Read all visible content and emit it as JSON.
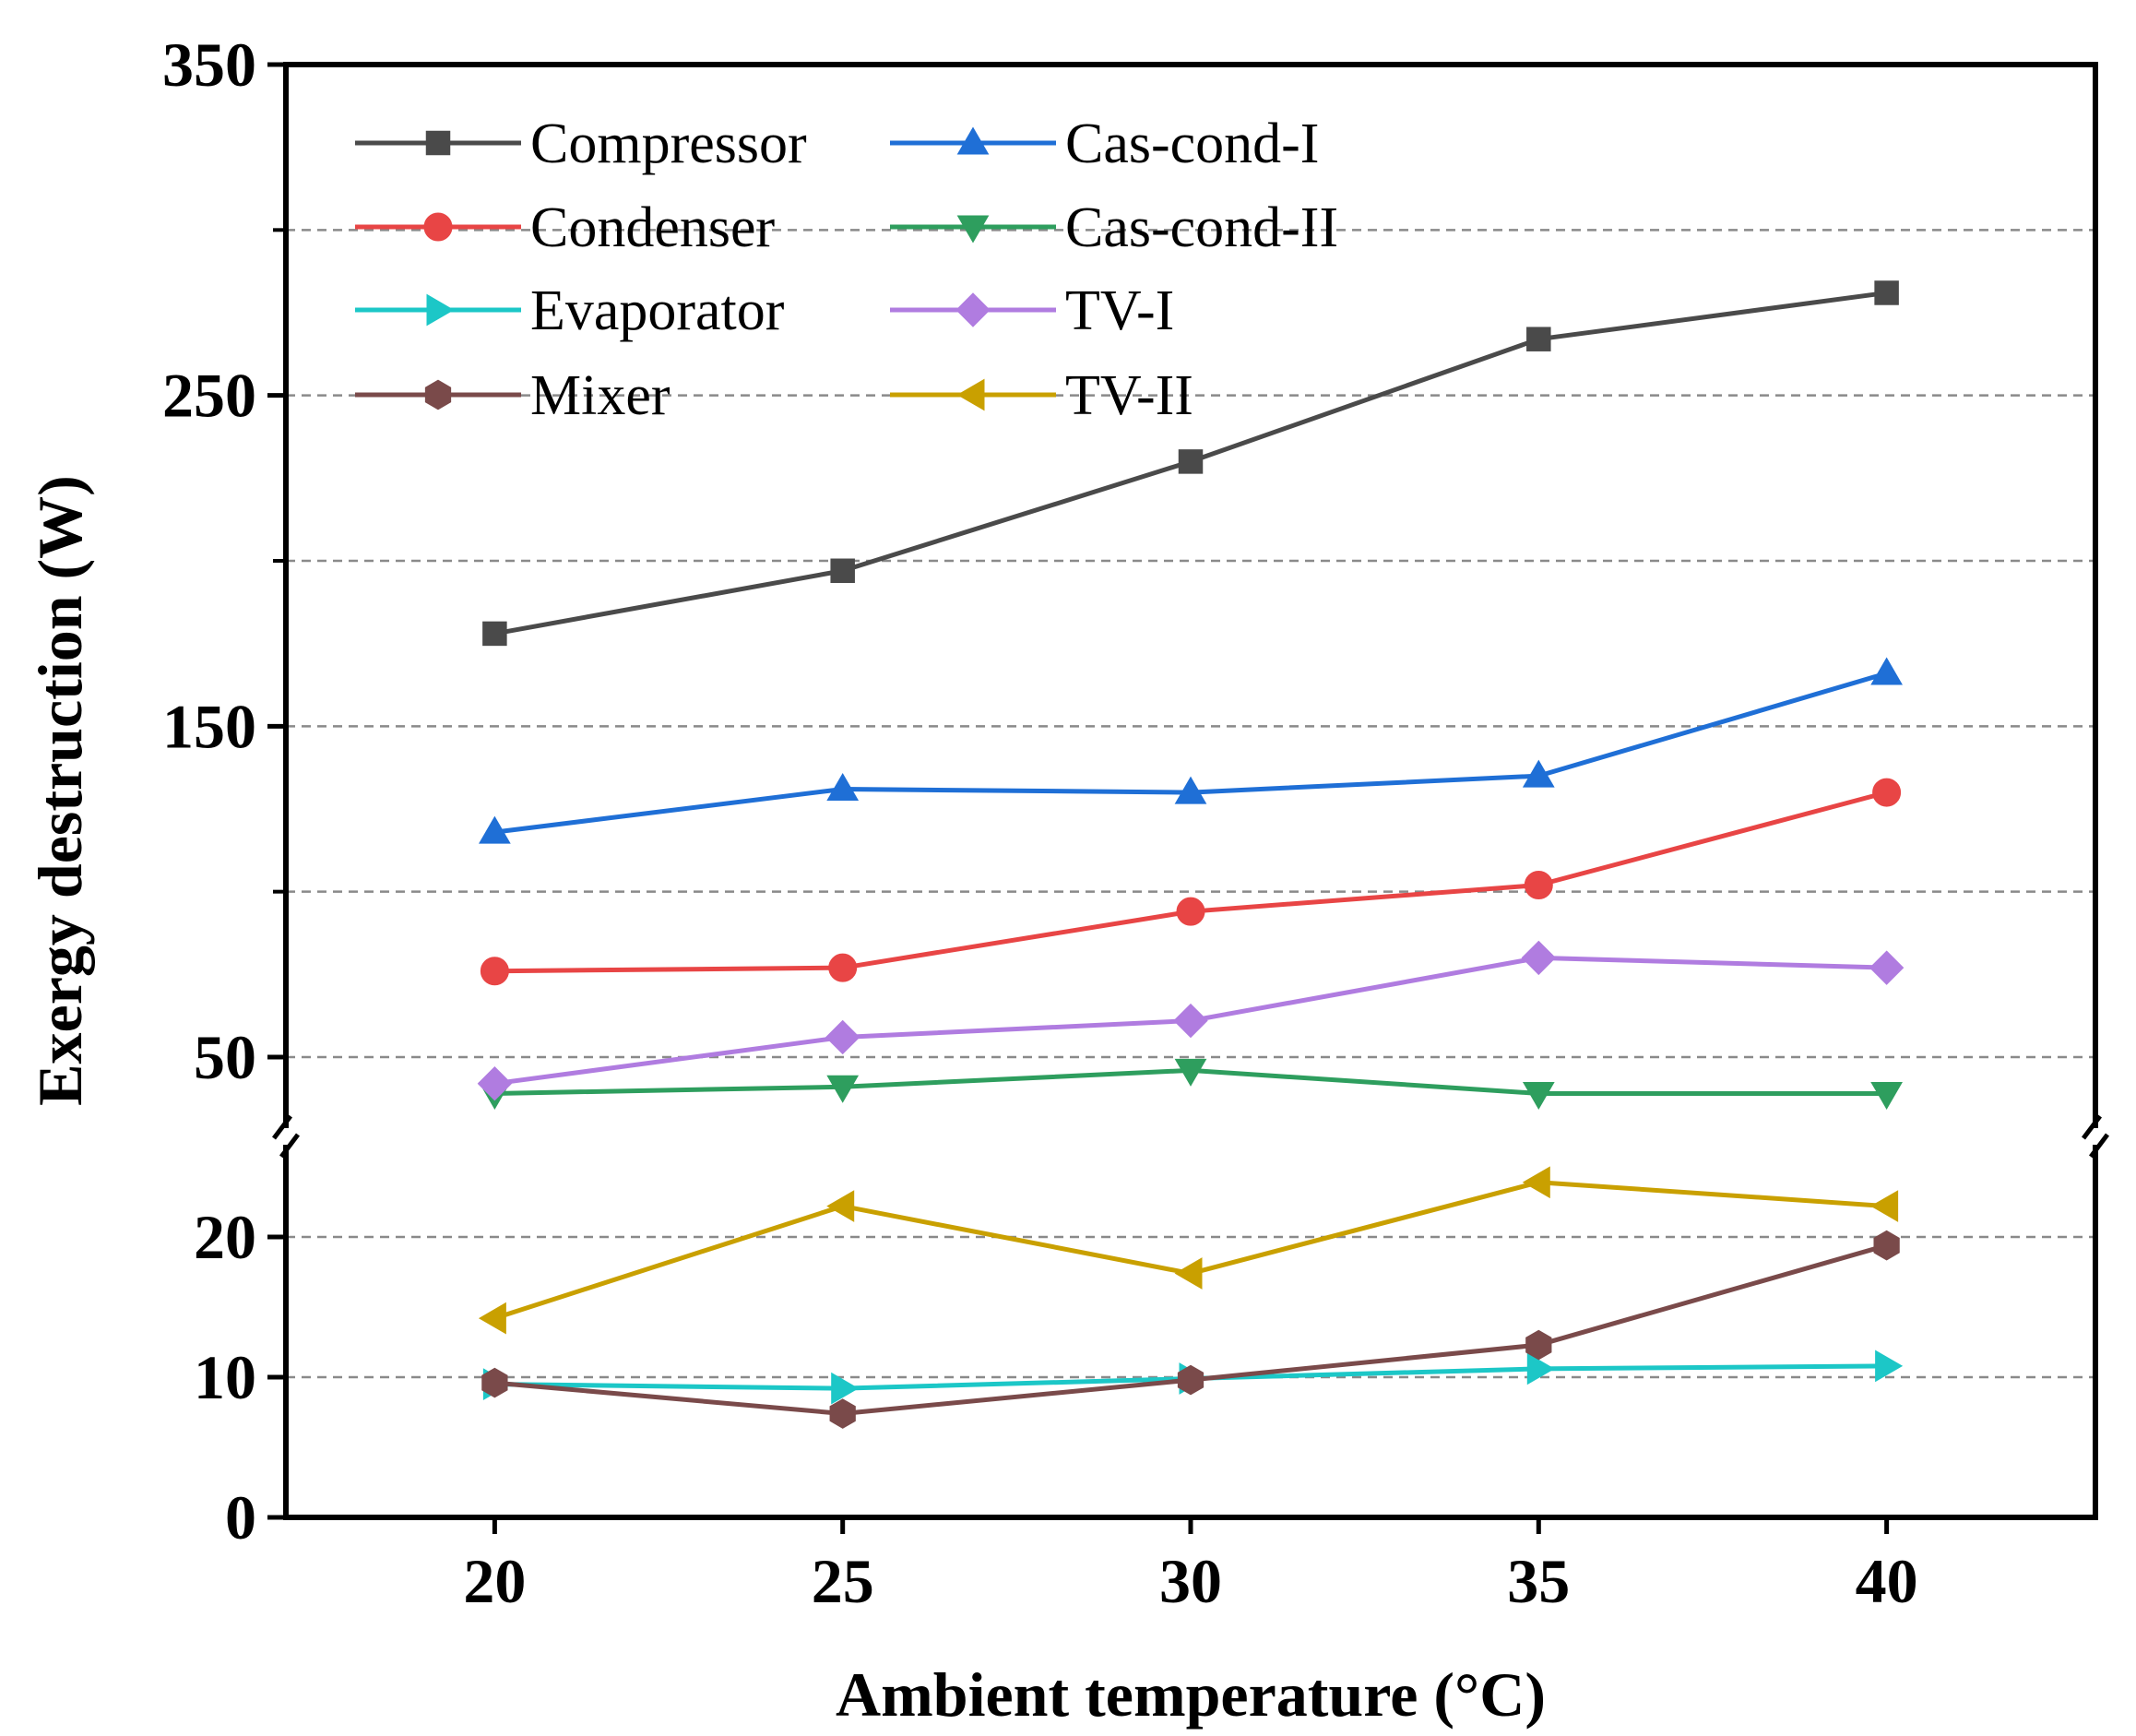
{
  "chart_data": {
    "type": "line",
    "title": "",
    "xlabel": "Ambient temperature (°C)",
    "ylabel": "Exergy destruction (W)",
    "x": [
      20,
      25,
      30,
      35,
      40
    ],
    "xlim": [
      17,
      43
    ],
    "x_ticks": [
      "20",
      "25",
      "30",
      "35",
      "40"
    ],
    "y_axis_break": true,
    "y_lower_range": [
      0,
      25
    ],
    "y_upper_range": [
      35,
      350
    ],
    "y_ticks": [
      "0",
      "10",
      "20",
      "50",
      "150",
      "250",
      "350"
    ],
    "y_tick_values": [
      0,
      10,
      20,
      50,
      150,
      250,
      350
    ],
    "y_minor_ticks": [
      100,
      200,
      300
    ],
    "grid": "horizontal dashed",
    "legend_position": "top-left",
    "series": [
      {
        "name": "Compressor",
        "marker": "square",
        "color": "#4a4a4a",
        "values": [
          178,
          197,
          230,
          267,
          281
        ]
      },
      {
        "name": "Condenser",
        "marker": "circle",
        "color": "#e84545",
        "values": [
          76,
          77,
          94,
          102,
          130
        ]
      },
      {
        "name": "Evaporator",
        "marker": "triangle-right",
        "color": "#1cc7c7",
        "values": [
          9.5,
          9.2,
          9.9,
          10.6,
          10.8
        ]
      },
      {
        "name": "Mixer",
        "marker": "hexagon",
        "color": "#7a4a4a",
        "values": [
          9.6,
          7.4,
          9.8,
          12.3,
          19.4
        ]
      },
      {
        "name": "Cas-cond-I",
        "marker": "triangle-up",
        "color": "#1f6fd6",
        "values": [
          118,
          131,
          130,
          135,
          166
        ]
      },
      {
        "name": "Cas-cond-II",
        "marker": "triangle-down",
        "color": "#2e9e5e",
        "values": [
          39,
          41,
          46,
          39,
          39
        ]
      },
      {
        "name": "TV-I",
        "marker": "diamond",
        "color": "#b07ce0",
        "values": [
          42,
          56,
          61,
          80,
          77
        ]
      },
      {
        "name": "TV-II",
        "marker": "triangle-left",
        "color": "#c9a000",
        "values": [
          14.2,
          22.2,
          17.4,
          23.9,
          22.2
        ]
      }
    ]
  }
}
